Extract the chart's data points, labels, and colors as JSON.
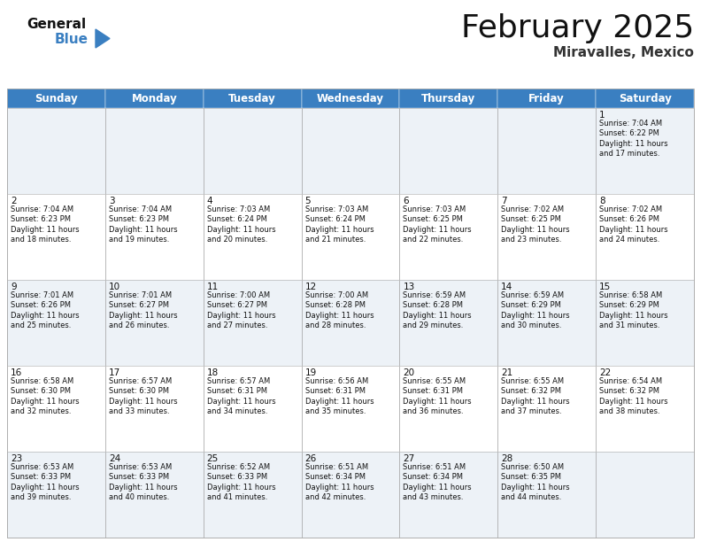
{
  "title": "February 2025",
  "subtitle": "Miravalles, Mexico",
  "header_color": "#3a7fc1",
  "header_text_color": "#ffffff",
  "background_color": "#ffffff",
  "alt_row_color": "#edf2f7",
  "cell_border_color": "#aaaaaa",
  "day_headers": [
    "Sunday",
    "Monday",
    "Tuesday",
    "Wednesday",
    "Thursday",
    "Friday",
    "Saturday"
  ],
  "logo_general_color": "#111111",
  "logo_blue_color": "#3a7fc1",
  "title_fontsize": 26,
  "subtitle_fontsize": 11,
  "header_fontsize": 8.5,
  "day_num_fontsize": 7.5,
  "cell_fontsize": 6.0,
  "weeks": [
    [
      {
        "day": null,
        "info": null
      },
      {
        "day": null,
        "info": null
      },
      {
        "day": null,
        "info": null
      },
      {
        "day": null,
        "info": null
      },
      {
        "day": null,
        "info": null
      },
      {
        "day": null,
        "info": null
      },
      {
        "day": 1,
        "info": "Sunrise: 7:04 AM\nSunset: 6:22 PM\nDaylight: 11 hours\nand 17 minutes."
      }
    ],
    [
      {
        "day": 2,
        "info": "Sunrise: 7:04 AM\nSunset: 6:23 PM\nDaylight: 11 hours\nand 18 minutes."
      },
      {
        "day": 3,
        "info": "Sunrise: 7:04 AM\nSunset: 6:23 PM\nDaylight: 11 hours\nand 19 minutes."
      },
      {
        "day": 4,
        "info": "Sunrise: 7:03 AM\nSunset: 6:24 PM\nDaylight: 11 hours\nand 20 minutes."
      },
      {
        "day": 5,
        "info": "Sunrise: 7:03 AM\nSunset: 6:24 PM\nDaylight: 11 hours\nand 21 minutes."
      },
      {
        "day": 6,
        "info": "Sunrise: 7:03 AM\nSunset: 6:25 PM\nDaylight: 11 hours\nand 22 minutes."
      },
      {
        "day": 7,
        "info": "Sunrise: 7:02 AM\nSunset: 6:25 PM\nDaylight: 11 hours\nand 23 minutes."
      },
      {
        "day": 8,
        "info": "Sunrise: 7:02 AM\nSunset: 6:26 PM\nDaylight: 11 hours\nand 24 minutes."
      }
    ],
    [
      {
        "day": 9,
        "info": "Sunrise: 7:01 AM\nSunset: 6:26 PM\nDaylight: 11 hours\nand 25 minutes."
      },
      {
        "day": 10,
        "info": "Sunrise: 7:01 AM\nSunset: 6:27 PM\nDaylight: 11 hours\nand 26 minutes."
      },
      {
        "day": 11,
        "info": "Sunrise: 7:00 AM\nSunset: 6:27 PM\nDaylight: 11 hours\nand 27 minutes."
      },
      {
        "day": 12,
        "info": "Sunrise: 7:00 AM\nSunset: 6:28 PM\nDaylight: 11 hours\nand 28 minutes."
      },
      {
        "day": 13,
        "info": "Sunrise: 6:59 AM\nSunset: 6:28 PM\nDaylight: 11 hours\nand 29 minutes."
      },
      {
        "day": 14,
        "info": "Sunrise: 6:59 AM\nSunset: 6:29 PM\nDaylight: 11 hours\nand 30 minutes."
      },
      {
        "day": 15,
        "info": "Sunrise: 6:58 AM\nSunset: 6:29 PM\nDaylight: 11 hours\nand 31 minutes."
      }
    ],
    [
      {
        "day": 16,
        "info": "Sunrise: 6:58 AM\nSunset: 6:30 PM\nDaylight: 11 hours\nand 32 minutes."
      },
      {
        "day": 17,
        "info": "Sunrise: 6:57 AM\nSunset: 6:30 PM\nDaylight: 11 hours\nand 33 minutes."
      },
      {
        "day": 18,
        "info": "Sunrise: 6:57 AM\nSunset: 6:31 PM\nDaylight: 11 hours\nand 34 minutes."
      },
      {
        "day": 19,
        "info": "Sunrise: 6:56 AM\nSunset: 6:31 PM\nDaylight: 11 hours\nand 35 minutes."
      },
      {
        "day": 20,
        "info": "Sunrise: 6:55 AM\nSunset: 6:31 PM\nDaylight: 11 hours\nand 36 minutes."
      },
      {
        "day": 21,
        "info": "Sunrise: 6:55 AM\nSunset: 6:32 PM\nDaylight: 11 hours\nand 37 minutes."
      },
      {
        "day": 22,
        "info": "Sunrise: 6:54 AM\nSunset: 6:32 PM\nDaylight: 11 hours\nand 38 minutes."
      }
    ],
    [
      {
        "day": 23,
        "info": "Sunrise: 6:53 AM\nSunset: 6:33 PM\nDaylight: 11 hours\nand 39 minutes."
      },
      {
        "day": 24,
        "info": "Sunrise: 6:53 AM\nSunset: 6:33 PM\nDaylight: 11 hours\nand 40 minutes."
      },
      {
        "day": 25,
        "info": "Sunrise: 6:52 AM\nSunset: 6:33 PM\nDaylight: 11 hours\nand 41 minutes."
      },
      {
        "day": 26,
        "info": "Sunrise: 6:51 AM\nSunset: 6:34 PM\nDaylight: 11 hours\nand 42 minutes."
      },
      {
        "day": 27,
        "info": "Sunrise: 6:51 AM\nSunset: 6:34 PM\nDaylight: 11 hours\nand 43 minutes."
      },
      {
        "day": 28,
        "info": "Sunrise: 6:50 AM\nSunset: 6:35 PM\nDaylight: 11 hours\nand 44 minutes."
      },
      {
        "day": null,
        "info": null
      }
    ]
  ]
}
